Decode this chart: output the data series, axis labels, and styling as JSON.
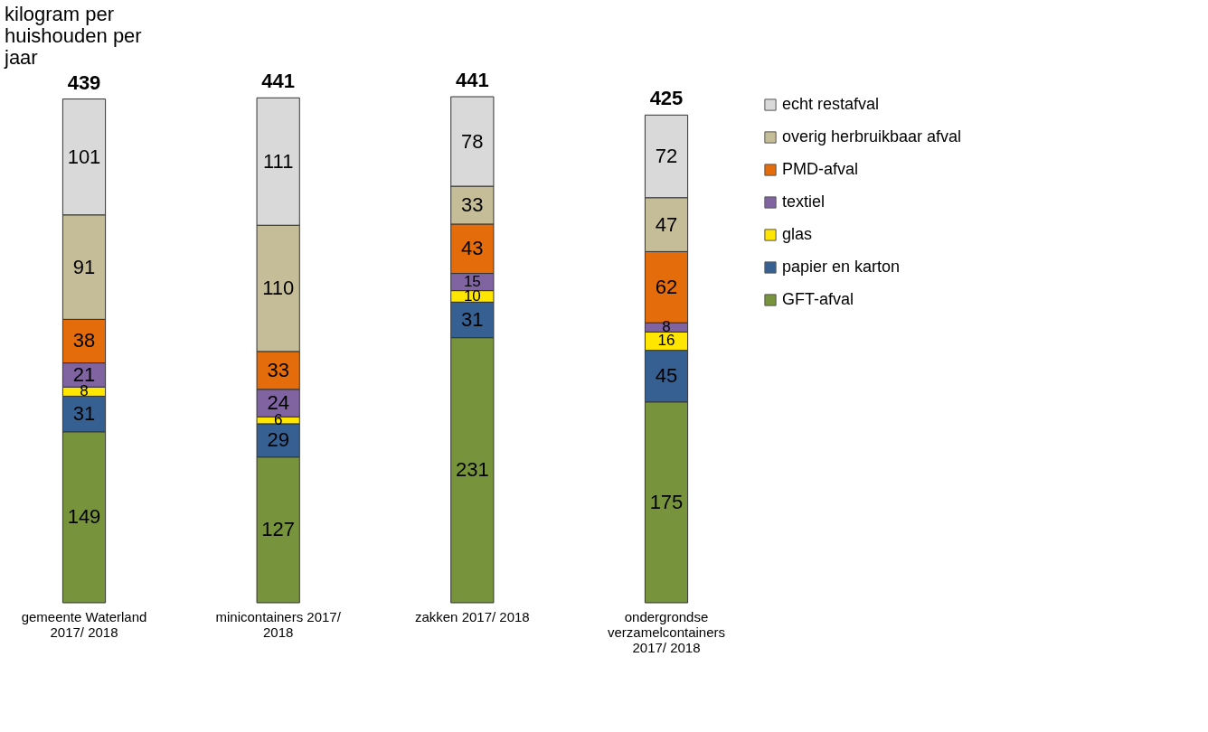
{
  "chart_data": {
    "type": "bar",
    "stacked": true,
    "data_labels": true,
    "legend": "right",
    "ylabel": "kilogram per huishouden per jaar",
    "categories": [
      "gemeente Waterland 2017/ 2018",
      "minicontainers 2017/ 2018",
      "zakken 2017/ 2018",
      "ondergrondse verzamelcontainers 2017/ 2018"
    ],
    "series": [
      {
        "name": "GFT-afval",
        "color": "#77933c",
        "values": [
          149,
          127,
          231,
          175
        ]
      },
      {
        "name": "papier en karton",
        "color": "#376092",
        "values": [
          31,
          29,
          31,
          45
        ]
      },
      {
        "name": "glas",
        "color": "#ffe600",
        "values": [
          8,
          6,
          10,
          16
        ]
      },
      {
        "name": "textiel",
        "color": "#8064a2",
        "values": [
          21,
          24,
          15,
          8
        ]
      },
      {
        "name": "PMD-afval",
        "color": "#e46c0a",
        "values": [
          38,
          33,
          43,
          62
        ]
      },
      {
        "name": "overig herbruikbaar afval",
        "color": "#c4bd97",
        "values": [
          91,
          110,
          33,
          47
        ]
      },
      {
        "name": "echt restafval",
        "color": "#d9d9d9",
        "values": [
          101,
          111,
          78,
          72
        ]
      }
    ],
    "totals": [
      "439",
      "441",
      "441",
      "425"
    ]
  }
}
